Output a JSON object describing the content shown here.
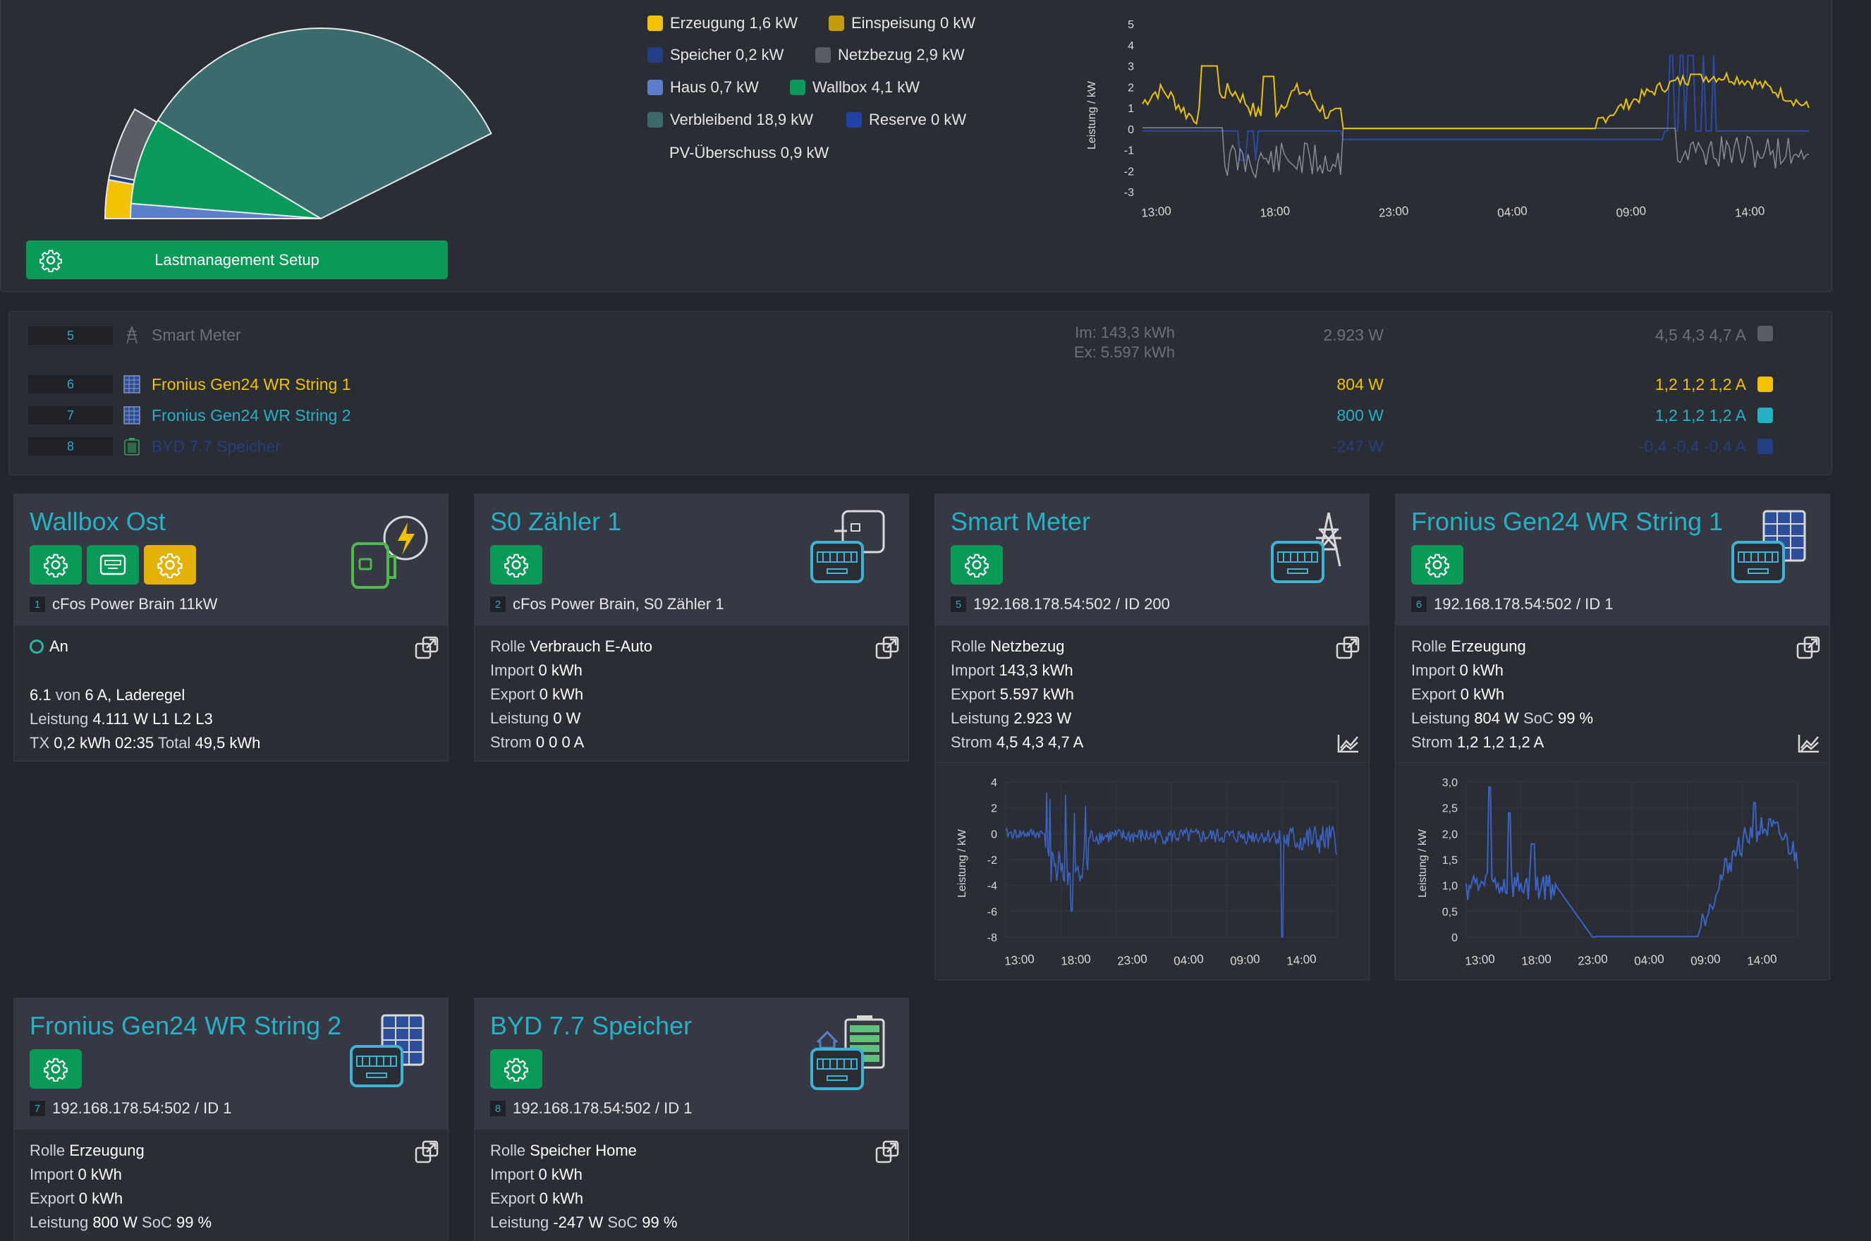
{
  "overview": {
    "legend": [
      {
        "label": "Erzeugung",
        "value": "1,6 kW",
        "color": "#f2c200"
      },
      {
        "label": "Einspeisung",
        "value": "0 kW",
        "color": "#c59a0c"
      },
      {
        "label": "Speicher",
        "value": "0,2 kW",
        "color": "#233e82"
      },
      {
        "label": "Netzbezug",
        "value": "2,9 kW",
        "color": "#5a5c66"
      },
      {
        "label": "Haus",
        "value": "0,7 kW",
        "color": "#5b7ecb"
      },
      {
        "label": "Wallbox",
        "value": "4,1 kW",
        "color": "#0a9a5c"
      },
      {
        "label": "Verbleibend",
        "value": "18,9 kW",
        "color": "#3b6b6d"
      },
      {
        "label": "Reserve",
        "value": "0 kW",
        "color": "#1e44a8"
      }
    ],
    "pv_surplus_label": "PV-Überschuss",
    "pv_surplus_value": "0,9 kW",
    "setup_button": "Lastmanagement Setup",
    "gauge_max_kw": 27.8,
    "gauge_segments": [
      {
        "name": "Erzeugung",
        "kw": 1.6,
        "color": "#f2c200",
        "ring": "outer"
      },
      {
        "name": "Speicher",
        "kw": 0.2,
        "color": "#233e82",
        "ring": "outer"
      },
      {
        "name": "Netzbezug",
        "kw": 2.9,
        "color": "#5a5c66",
        "ring": "outer"
      },
      {
        "name": "Haus",
        "kw": 0.7,
        "color": "#5b7ecb",
        "ring": "inner"
      },
      {
        "name": "Wallbox",
        "kw": 4.1,
        "color": "#0a9a5c",
        "ring": "inner"
      },
      {
        "name": "Verbleibend",
        "kw": 18.9,
        "color": "#3b6b6d",
        "ring": "inner"
      }
    ]
  },
  "main_chart": {
    "ylabel": "Leistung / kW",
    "yticks": [
      "5",
      "4",
      "3",
      "2",
      "1",
      "0",
      "-1",
      "-2",
      "-3"
    ],
    "xticks": [
      "13:00",
      "18:00",
      "23:00",
      "04:00",
      "09:00",
      "14:00"
    ]
  },
  "device_rows": [
    {
      "num": "5",
      "name": "Smart Meter",
      "energy_import": "Im: 143,3 kWh",
      "energy_export": "Ex: 5.597 kWh",
      "power": "2.923 W",
      "amps": "4,5 4,3 4,7 A",
      "color": "#5a5c66",
      "text_color": "#6d7079",
      "icon": "power-tower-icon"
    },
    {
      "num": "6",
      "name": "Fronius Gen24 WR String 1",
      "energy_import": "",
      "energy_export": "",
      "power": "804 W",
      "amps": "1,2 1,2 1,2 A",
      "color": "#f2c200",
      "text_color": "#f2c200",
      "icon": "solar-panel-icon"
    },
    {
      "num": "7",
      "name": "Fronius Gen24 WR String 2",
      "energy_import": "",
      "energy_export": "",
      "power": "800 W",
      "amps": "1,2 1,2 1,2 A",
      "color": "#26b1c6",
      "text_color": "#26b1c6",
      "icon": "solar-panel-icon"
    },
    {
      "num": "8",
      "name": "BYD 7.7 Speicher",
      "energy_import": "",
      "energy_export": "",
      "power": "-247 W",
      "amps": "-0,4 -0,4 -0,4 A",
      "color": "#233e82",
      "text_color": "#25407e",
      "icon": "battery-icon"
    }
  ],
  "cards": {
    "wallbox": {
      "title": "Wallbox Ost",
      "badge": "1",
      "subtitle": "cFos Power Brain 11kW",
      "status": "An",
      "line1_a": "6.1",
      "line1_b": "von",
      "line1_c": "6 A, Laderegel",
      "line2_a": "Leistung",
      "line2_b": "4.111 W L1 L2 L3",
      "line3_a": "TX",
      "line3_b": "0,2 kWh 02:35",
      "line3_c": "Total",
      "line3_d": "49,5 kWh"
    },
    "s0": {
      "title": "S0 Zähler 1",
      "badge": "2",
      "subtitle": "cFos Power Brain, S0 Zähler 1",
      "rolle_label": "Rolle",
      "rolle": "Verbrauch E-Auto",
      "import_label": "Import",
      "import": "0 kWh",
      "export_label": "Export",
      "export": "0 kWh",
      "leistung_label": "Leistung",
      "leistung": "0 W",
      "strom_label": "Strom",
      "strom": "0 0 0 A"
    },
    "smart_meter": {
      "title": "Smart Meter",
      "badge": "5",
      "subtitle": "192.168.178.54:502 / ID 200",
      "rolle_label": "Rolle",
      "rolle": "Netzbezug",
      "import_label": "Import",
      "import": "143,3 kWh",
      "export_label": "Export",
      "export": "5.597 kWh",
      "leistung_label": "Leistung",
      "leistung": "2.923 W",
      "strom_label": "Strom",
      "strom": "4,5 4,3 4,7 A",
      "chart": {
        "ylabel": "Leistung / kW",
        "yticks": [
          "4",
          "2",
          "0",
          "-2",
          "-4",
          "-6",
          "-8"
        ],
        "xticks": [
          "13:00",
          "18:00",
          "23:00",
          "04:00",
          "09:00",
          "14:00"
        ]
      }
    },
    "string1": {
      "title": "Fronius Gen24 WR String 1",
      "badge": "6",
      "subtitle": "192.168.178.54:502 / ID 1",
      "rolle_label": "Rolle",
      "rolle": "Erzeugung",
      "import_label": "Import",
      "import": "0 kWh",
      "export_label": "Export",
      "export": "0 kWh",
      "leistung_label": "Leistung",
      "leistung": "804 W",
      "soc_label": "SoC",
      "soc": "99 %",
      "strom_label": "Strom",
      "strom": "1,2 1,2 1,2 A",
      "chart": {
        "ylabel": "Leistung / kW",
        "yticks": [
          "3,0",
          "2,5",
          "2,0",
          "1,5",
          "1,0",
          "0,5",
          "0"
        ],
        "xticks": [
          "13:00",
          "18:00",
          "23:00",
          "04:00",
          "09:00",
          "14:00"
        ]
      }
    },
    "string2": {
      "title": "Fronius Gen24 WR String 2",
      "badge": "7",
      "subtitle": "192.168.178.54:502 / ID 1",
      "rolle_label": "Rolle",
      "rolle": "Erzeugung",
      "import_label": "Import",
      "import": "0 kWh",
      "export_label": "Export",
      "export": "0 kWh",
      "leistung_label": "Leistung",
      "leistung": "800 W",
      "soc_label": "SoC",
      "soc": "99 %"
    },
    "byd": {
      "title": "BYD 7.7 Speicher",
      "badge": "8",
      "subtitle": "192.168.178.54:502 / ID 1",
      "rolle_label": "Rolle",
      "rolle": "Speicher Home",
      "import_label": "Import",
      "import": "0 kWh",
      "export_label": "Export",
      "export": "0 kWh",
      "leistung_label": "Leistung",
      "leistung": "-247 W",
      "soc_label": "SoC",
      "soc": "99 %"
    }
  }
}
